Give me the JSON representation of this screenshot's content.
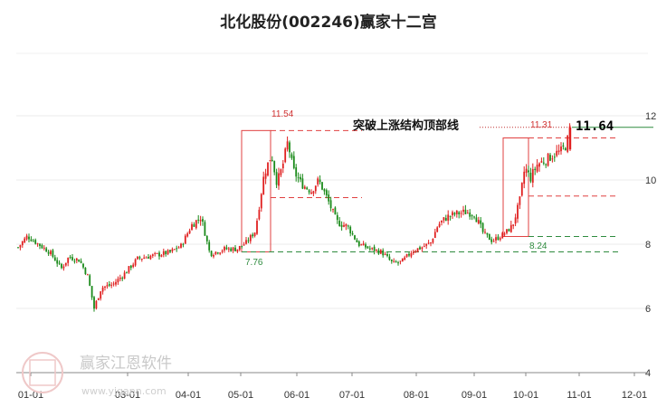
{
  "chart_data": {
    "type": "candlestick",
    "title": "北化股份(002246)赢家十二宫",
    "y_ticks": [
      "12",
      "10",
      "8",
      "6",
      "4"
    ],
    "y_tick_values": [
      12,
      10,
      8,
      6,
      4
    ],
    "ylim": [
      4,
      12.8
    ],
    "x_ticks": [
      "01-01",
      "03-01",
      "04-01",
      "05-01",
      "06-01",
      "07-01",
      "08-01",
      "09-01",
      "10-01",
      "11-01",
      "12-01"
    ],
    "grid": true,
    "colors": {
      "up": "#e02020",
      "down": "#1a8a1a",
      "box": "#e04040",
      "support": "#2e8b3e",
      "resist": "#e04040"
    },
    "annotations": {
      "peak_label": "11.54",
      "peak_value": 11.54,
      "low_label": "7.76",
      "low_value": 7.76,
      "right_high_label": "11.31",
      "right_high_value": 11.31,
      "right_low_label": "8.24",
      "right_low_value": 8.24,
      "breakout_text": "突破上涨结构顶部线",
      "last_price": "11.64",
      "last_price_value": 11.64
    },
    "watermark": {
      "brand": "赢家江恩软件",
      "site": "www.yjgann.com",
      "seal": "赢家 江恩"
    }
  }
}
